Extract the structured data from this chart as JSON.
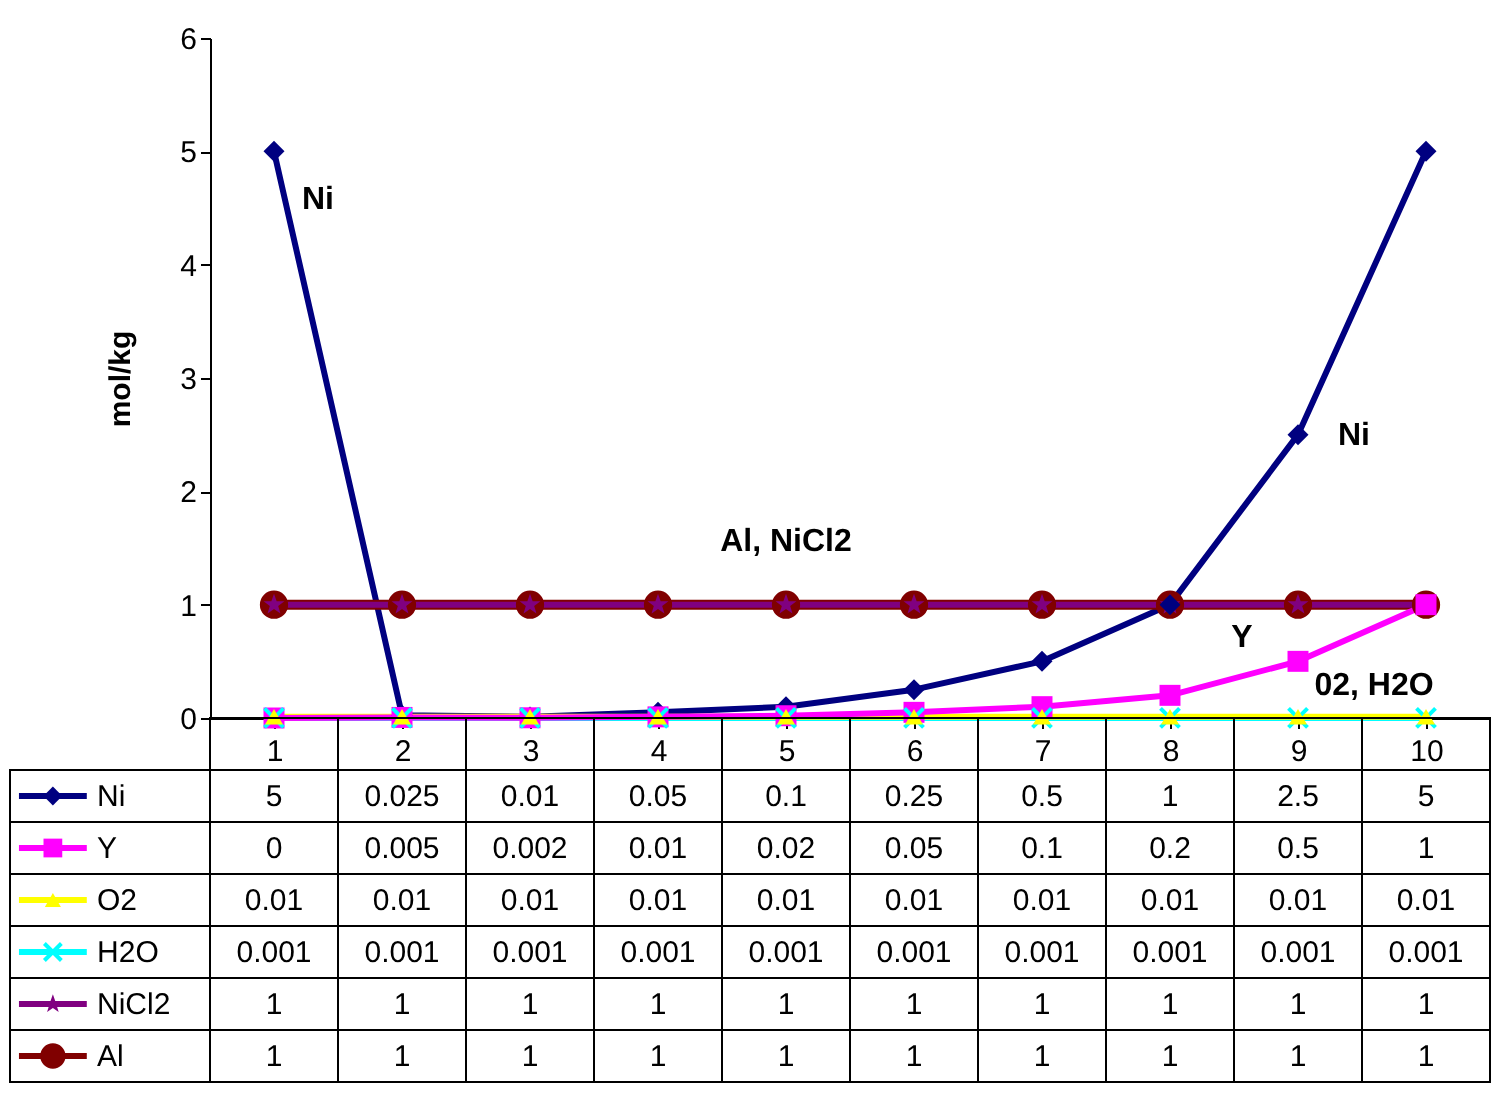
{
  "chart_data": {
    "type": "line",
    "ylabel": "mol/kg",
    "categories": [
      "1",
      "2",
      "3",
      "4",
      "5",
      "6",
      "7",
      "8",
      "9",
      "10"
    ],
    "series": [
      {
        "name": "Ni",
        "color": "#000080",
        "marker": "diamond",
        "values": [
          5,
          0.025,
          0.01,
          0.05,
          0.1,
          0.25,
          0.5,
          1,
          2.5,
          5
        ]
      },
      {
        "name": "Y",
        "color": "#ff00ff",
        "marker": "square",
        "values": [
          0,
          0.005,
          0.002,
          0.01,
          0.02,
          0.05,
          0.1,
          0.2,
          0.5,
          1
        ]
      },
      {
        "name": "O2",
        "color": "#ffff00",
        "marker": "triangle",
        "values": [
          0.01,
          0.01,
          0.01,
          0.01,
          0.01,
          0.01,
          0.01,
          0.01,
          0.01,
          0.01
        ]
      },
      {
        "name": "H2O",
        "color": "#00ffff",
        "marker": "cross",
        "values": [
          0.001,
          0.001,
          0.001,
          0.001,
          0.001,
          0.001,
          0.001,
          0.001,
          0.001,
          0.001
        ]
      },
      {
        "name": "NiCl2",
        "color": "#800080",
        "marker": "star",
        "values": [
          1,
          1,
          1,
          1,
          1,
          1,
          1,
          1,
          1,
          1
        ]
      },
      {
        "name": "Al",
        "color": "#800000",
        "marker": "circle",
        "values": [
          1,
          1,
          1,
          1,
          1,
          1,
          1,
          1,
          1,
          1
        ]
      }
    ],
    "ylim": [
      0,
      6
    ],
    "yticks": [
      0,
      1,
      2,
      3,
      4,
      5,
      6
    ],
    "annotations": [
      {
        "text": "Ni",
        "x": "1",
        "y": 5
      },
      {
        "text": "Ni",
        "x": "9",
        "y": 2.5
      },
      {
        "text": "Al, NiCl2",
        "x": "5",
        "y": 1
      },
      {
        "text": "Y",
        "x": "9",
        "y": 0.5
      },
      {
        "text": "02, H2O",
        "x": "10",
        "y": 0.01
      }
    ],
    "data_labels": true,
    "legend": "bottom"
  }
}
